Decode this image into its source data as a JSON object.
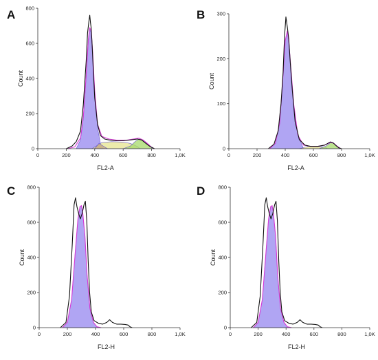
{
  "chart_data": [
    {
      "panel": "A",
      "type": "area",
      "xlabel": "FL2-A",
      "ylabel": "Count",
      "xlim": [
        0,
        1000
      ],
      "ylim": [
        0,
        800
      ],
      "x_ticks": [
        0,
        200,
        400,
        600,
        800,
        1000
      ],
      "x_tick_labels": [
        "0",
        "200",
        "400",
        "600",
        "800",
        "1,0K"
      ],
      "y_ticks": [
        0,
        200,
        400,
        600,
        800
      ],
      "y_tick_labels": [
        "0",
        "200",
        "400",
        "600",
        "800"
      ],
      "histogram": {
        "x": [
          200,
          240,
          270,
          300,
          320,
          340,
          350,
          360,
          365,
          370,
          375,
          380,
          390,
          400,
          420,
          440,
          470,
          500,
          550,
          600,
          650,
          700,
          730,
          760,
          790,
          820
        ],
        "y": [
          0,
          15,
          40,
          100,
          250,
          500,
          660,
          730,
          760,
          720,
          690,
          620,
          450,
          290,
          140,
          75,
          55,
          50,
          45,
          45,
          50,
          55,
          50,
          30,
          12,
          0
        ]
      },
      "fit_total": {
        "x": [
          210,
          260,
          300,
          320,
          340,
          355,
          365,
          375,
          385,
          400,
          420,
          450,
          500,
          560,
          620,
          670,
          710,
          740,
          770,
          800,
          820
        ],
        "y": [
          0,
          10,
          60,
          180,
          420,
          620,
          690,
          670,
          560,
          330,
          140,
          70,
          55,
          48,
          48,
          55,
          60,
          50,
          30,
          8,
          0
        ]
      },
      "components": [
        {
          "color": "#9a8cf0",
          "x": [
            270,
            300,
            320,
            340,
            355,
            365,
            375,
            385,
            400,
            420,
            440,
            460
          ],
          "y": [
            0,
            50,
            170,
            410,
            610,
            680,
            660,
            550,
            320,
            120,
            30,
            0
          ]
        },
        {
          "color": "#e5e48f",
          "x": [
            380,
            450,
            520,
            590,
            650,
            700,
            720
          ],
          "y": [
            0,
            35,
            40,
            38,
            30,
            12,
            0
          ]
        },
        {
          "color": "#a6d96a",
          "x": [
            600,
            650,
            690,
            715,
            740,
            770,
            800,
            820
          ],
          "y": [
            0,
            15,
            45,
            55,
            45,
            25,
            5,
            0
          ]
        },
        {
          "color": "#c4a882",
          "x": [
            400,
            430,
            460,
            490
          ],
          "y": [
            0,
            30,
            15,
            0
          ]
        }
      ]
    },
    {
      "panel": "B",
      "type": "area",
      "xlabel": "FL2-A",
      "ylabel": "Count",
      "xlim": [
        0,
        1000
      ],
      "ylim": [
        0,
        300
      ],
      "x_ticks": [
        0,
        200,
        400,
        600,
        800,
        1000
      ],
      "x_tick_labels": [
        "0",
        "200",
        "400",
        "600",
        "800",
        "1,0K"
      ],
      "y_ticks": [
        0,
        100,
        200,
        300
      ],
      "y_tick_labels": [
        "0",
        "100",
        "200",
        "300"
      ],
      "histogram": {
        "x": [
          280,
          320,
          350,
          370,
          385,
          395,
          405,
          415,
          425,
          435,
          450,
          470,
          500,
          540,
          580,
          630,
          680,
          720,
          740,
          760,
          780,
          800
        ],
        "y": [
          0,
          10,
          40,
          100,
          170,
          250,
          293,
          270,
          245,
          195,
          130,
          60,
          20,
          8,
          5,
          5,
          8,
          15,
          13,
          7,
          2,
          0
        ]
      },
      "fit_total": {
        "x": [
          290,
          330,
          360,
          380,
          400,
          415,
          425,
          440,
          460,
          490,
          530,
          580,
          630,
          680,
          720,
          745,
          770,
          795
        ],
        "y": [
          0,
          12,
          55,
          140,
          240,
          262,
          240,
          180,
          100,
          30,
          8,
          5,
          5,
          8,
          14,
          12,
          5,
          0
        ]
      },
      "components": [
        {
          "color": "#9a8cf0",
          "x": [
            290,
            330,
            360,
            380,
            400,
            415,
            425,
            440,
            460,
            490,
            530
          ],
          "y": [
            0,
            12,
            55,
            140,
            240,
            262,
            240,
            180,
            100,
            30,
            0
          ]
        },
        {
          "color": "#e5e48f",
          "x": [
            500,
            560,
            620,
            680,
            700
          ],
          "y": [
            0,
            5,
            5,
            4,
            0
          ]
        },
        {
          "color": "#a6d96a",
          "x": [
            640,
            690,
            720,
            745,
            770,
            795
          ],
          "y": [
            0,
            6,
            13,
            12,
            5,
            0
          ]
        }
      ]
    },
    {
      "panel": "C",
      "type": "area",
      "xlabel": "FL2-H",
      "ylabel": "Count",
      "xlim": [
        0,
        1000
      ],
      "ylim": [
        0,
        800
      ],
      "x_ticks": [
        0,
        200,
        400,
        600,
        800,
        1000
      ],
      "x_tick_labels": [
        "0",
        "200",
        "400",
        "600",
        "800",
        "1,0K"
      ],
      "y_ticks": [
        0,
        200,
        400,
        600,
        800
      ],
      "y_tick_labels": [
        "0",
        "200",
        "400",
        "600",
        "800"
      ],
      "histogram": {
        "x": [
          150,
          190,
          215,
          235,
          248,
          258,
          268,
          280,
          292,
          305,
          318,
          328,
          338,
          348,
          358,
          370,
          390,
          420,
          450,
          480,
          500,
          520,
          550,
          580,
          610,
          630,
          645,
          660
        ],
        "y": [
          0,
          30,
          180,
          480,
          700,
          740,
          690,
          650,
          620,
          650,
          700,
          720,
          610,
          380,
          200,
          90,
          40,
          25,
          20,
          30,
          45,
          30,
          20,
          20,
          18,
          15,
          5,
          0
        ]
      },
      "fit_total": {
        "x": [
          165,
          200,
          230,
          255,
          275,
          290,
          300,
          310,
          325,
          340,
          360,
          385,
          410,
          440
        ],
        "y": [
          0,
          30,
          160,
          420,
          620,
          690,
          695,
          650,
          520,
          300,
          110,
          30,
          5,
          0
        ]
      },
      "components": [
        {
          "color": "#9a8cf0",
          "x": [
            165,
            200,
            230,
            255,
            275,
            290,
            300,
            310,
            325,
            340,
            360,
            385,
            410,
            440
          ],
          "y": [
            0,
            30,
            160,
            420,
            620,
            690,
            695,
            650,
            520,
            300,
            110,
            30,
            5,
            0
          ]
        }
      ]
    },
    {
      "panel": "D",
      "type": "area",
      "xlabel": "FL2-H",
      "ylabel": "Count",
      "xlim": [
        0,
        1000
      ],
      "ylim": [
        0,
        800
      ],
      "x_ticks": [
        0,
        200,
        400,
        600,
        800,
        1000
      ],
      "x_tick_labels": [
        "0",
        "200",
        "400",
        "600",
        "800",
        "1,0K"
      ],
      "y_ticks": [
        0,
        200,
        400,
        600,
        800
      ],
      "y_tick_labels": [
        "0",
        "200",
        "400",
        "600",
        "800"
      ],
      "histogram": {
        "x": [
          150,
          190,
          215,
          235,
          248,
          258,
          268,
          280,
          292,
          305,
          318,
          328,
          338,
          348,
          358,
          370,
          390,
          420,
          450,
          480,
          500,
          520,
          550,
          580,
          610,
          630,
          645,
          660
        ],
        "y": [
          0,
          30,
          180,
          480,
          700,
          740,
          690,
          650,
          620,
          650,
          700,
          720,
          610,
          380,
          200,
          90,
          40,
          25,
          20,
          30,
          45,
          30,
          20,
          20,
          18,
          15,
          5,
          0
        ]
      },
      "fit_total": {
        "x": [
          165,
          200,
          230,
          255,
          275,
          290,
          300,
          310,
          325,
          340,
          360,
          385,
          410,
          440
        ],
        "y": [
          0,
          30,
          160,
          420,
          620,
          690,
          695,
          650,
          520,
          300,
          110,
          30,
          5,
          0
        ]
      },
      "components": [
        {
          "color": "#9a8cf0",
          "x": [
            165,
            200,
            230,
            255,
            275,
            290,
            300,
            310,
            325,
            340,
            360,
            385,
            410,
            440
          ],
          "y": [
            0,
            30,
            160,
            420,
            620,
            690,
            695,
            650,
            520,
            300,
            110,
            30,
            5,
            0
          ]
        }
      ]
    }
  ],
  "colors": {
    "histogram_line": "#111111",
    "fit_line": "#d63ad6",
    "component_edge": "#6a5acd",
    "axis": "#333333"
  }
}
